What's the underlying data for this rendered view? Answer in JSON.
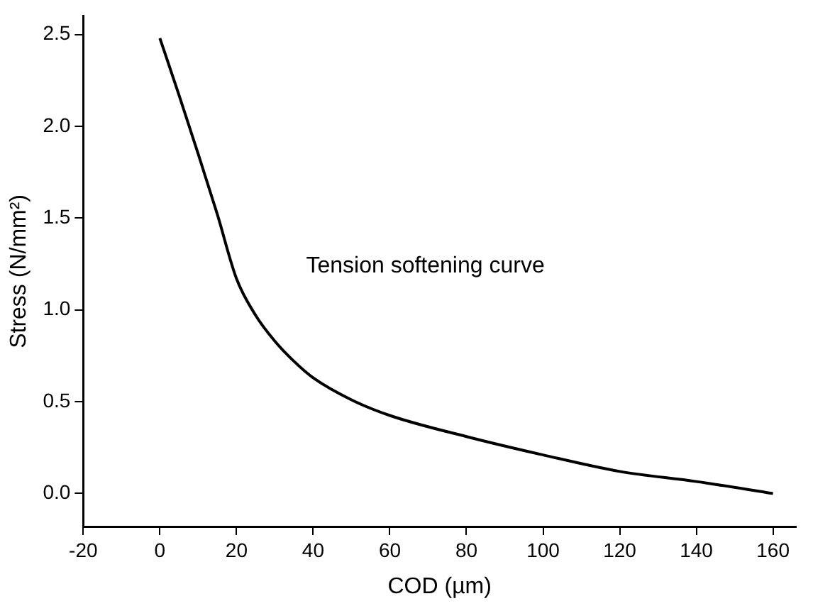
{
  "chart_data": {
    "type": "line",
    "xlabel": "COD (µm)",
    "ylabel": "Stress (N/mm²)",
    "x": [
      0,
      5,
      10,
      15,
      20,
      25,
      30,
      35,
      40,
      50,
      60,
      80,
      100,
      120,
      140,
      160
    ],
    "series": [
      {
        "color": "#000000",
        "values": [
          2.48,
          2.17,
          1.85,
          1.52,
          1.17,
          0.97,
          0.83,
          0.72,
          0.63,
          0.51,
          0.425,
          0.31,
          0.21,
          0.12,
          0.065,
          0.0
        ]
      }
    ],
    "xlim": [
      -20,
      166
    ],
    "ylim": [
      -0.18,
      2.6
    ],
    "xticks": [
      -20,
      0,
      20,
      40,
      60,
      80,
      100,
      120,
      140,
      160
    ],
    "yticks": [
      {
        "value": 0,
        "label": "0.0"
      },
      {
        "value": 0.5,
        "label": "0.5"
      },
      {
        "value": 1,
        "label": "1.0"
      },
      {
        "value": 1.5,
        "label": "1.5"
      },
      {
        "value": 2,
        "label": "2.0"
      },
      {
        "value": 2.5,
        "label": "2.5"
      }
    ],
    "annotations": [
      "Tension softening curve"
    ],
    "grid": false,
    "legend": false,
    "marker": "none",
    "line_style": "solid"
  }
}
